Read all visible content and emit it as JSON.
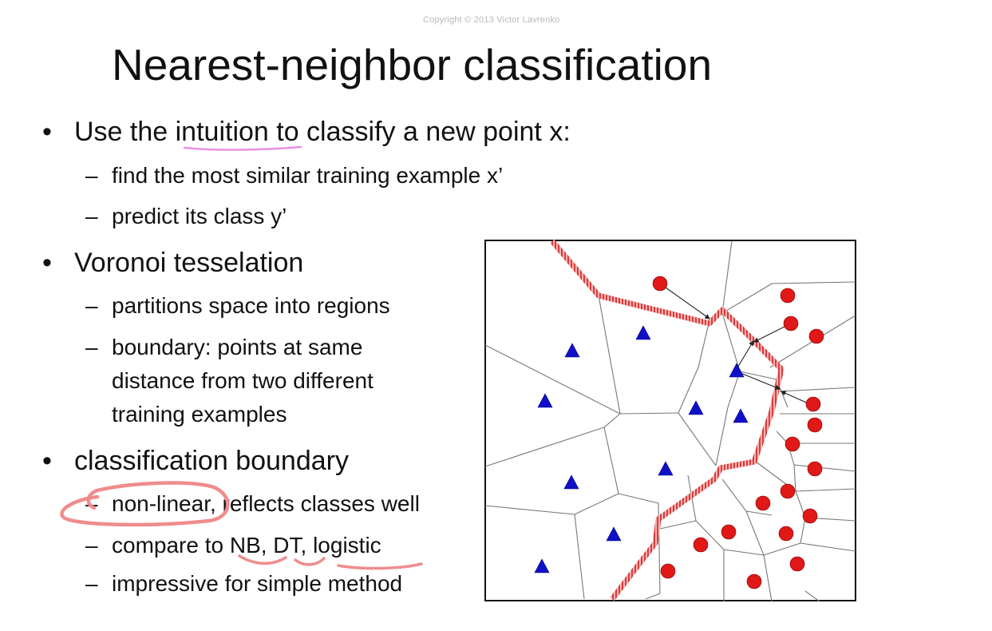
{
  "slide": {
    "copyright": "Copyright © 2013 Victor Lavrenko",
    "title": "Nearest-neighbor classification",
    "bullets": [
      {
        "text": "Use the intuition to classify a new point x:",
        "sub": [
          "find the most similar training example x’",
          "predict its class y’"
        ]
      },
      {
        "text": "Voronoi tesselation",
        "sub": [
          "partitions space into regions",
          "boundary: points at same distance from two different training examples"
        ]
      },
      {
        "text": "classification boundary",
        "sub": [
          "non-linear, reflects classes well",
          "compare to NB, DT, logistic",
          "impressive for simple method"
        ]
      }
    ]
  },
  "annotations": {
    "color": "#f08c8c",
    "underline_color": "#e98ee6"
  },
  "diagram": {
    "class_a": {
      "marker": "triangle",
      "color": "#1010c8"
    },
    "class_b": {
      "marker": "circle",
      "color": "#e01818"
    },
    "boundary_color": "#e05050"
  }
}
